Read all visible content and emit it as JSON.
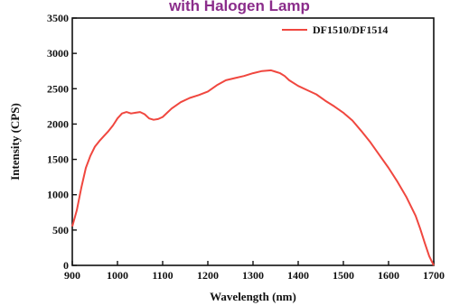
{
  "chart_data": {
    "type": "line",
    "title": "with Halogen Lamp",
    "xlabel": "Wavelength (nm)",
    "ylabel": "Intensity (CPS)",
    "xlim": [
      900,
      1700
    ],
    "ylim": [
      0,
      3500
    ],
    "xticks": [
      "900",
      "1000",
      "1100",
      "1200",
      "1300",
      "1400",
      "1500",
      "1600",
      "1700"
    ],
    "yticks": [
      "0",
      "500",
      "1000",
      "1500",
      "2000",
      "2500",
      "3000",
      "3500"
    ],
    "legend_position": "top-right",
    "grid": false,
    "series": [
      {
        "name": "DF1510/DF1514",
        "color": "#f0473f",
        "x": [
          900,
          910,
          920,
          930,
          940,
          950,
          960,
          970,
          980,
          990,
          1000,
          1010,
          1020,
          1030,
          1040,
          1050,
          1060,
          1070,
          1080,
          1090,
          1100,
          1110,
          1120,
          1140,
          1160,
          1180,
          1200,
          1220,
          1240,
          1260,
          1280,
          1300,
          1320,
          1340,
          1350,
          1360,
          1370,
          1380,
          1400,
          1420,
          1440,
          1460,
          1480,
          1500,
          1520,
          1540,
          1560,
          1580,
          1600,
          1620,
          1640,
          1660,
          1670,
          1680,
          1690,
          1700
        ],
        "y": [
          550,
          780,
          1100,
          1380,
          1550,
          1680,
          1760,
          1830,
          1900,
          1980,
          2080,
          2150,
          2170,
          2150,
          2160,
          2170,
          2140,
          2080,
          2060,
          2070,
          2100,
          2160,
          2220,
          2310,
          2370,
          2410,
          2460,
          2550,
          2620,
          2650,
          2680,
          2720,
          2750,
          2760,
          2740,
          2720,
          2680,
          2620,
          2540,
          2480,
          2420,
          2330,
          2250,
          2160,
          2050,
          1900,
          1740,
          1560,
          1380,
          1180,
          960,
          700,
          520,
          320,
          130,
          0
        ]
      }
    ]
  }
}
